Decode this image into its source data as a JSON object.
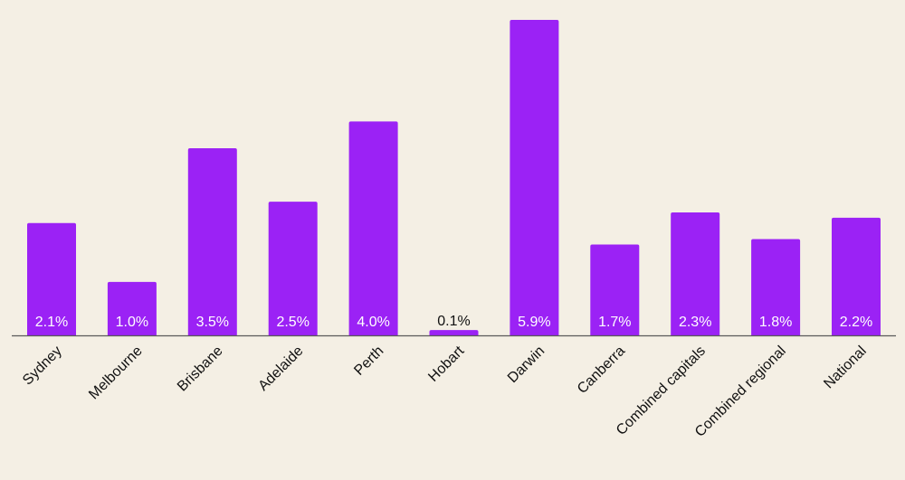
{
  "colors": {
    "background": "#f4efe4",
    "bar": "#9b22f5",
    "axis": "#5a5a5a",
    "label_inside": "#ffffff",
    "label_outside": "#111111",
    "category_text": "#111111"
  },
  "chart_data": {
    "type": "bar",
    "categories": [
      "Sydney",
      "Melbourne",
      "Brisbane",
      "Adelaide",
      "Perth",
      "Hobart",
      "Darwin",
      "Canberra",
      "Combined capitals",
      "Combined regional",
      "National"
    ],
    "values": [
      2.1,
      1.0,
      3.5,
      2.5,
      4.0,
      0.1,
      5.9,
      1.7,
      2.3,
      1.8,
      2.2
    ],
    "value_labels": [
      "2.1%",
      "1.0%",
      "3.5%",
      "2.5%",
      "4.0%",
      "0.1%",
      "5.9%",
      "1.7%",
      "2.3%",
      "1.8%",
      "2.2%"
    ],
    "title": "",
    "xlabel": "",
    "ylabel": "",
    "ylim": [
      0,
      5.9
    ],
    "grid": false,
    "legend": "none"
  }
}
